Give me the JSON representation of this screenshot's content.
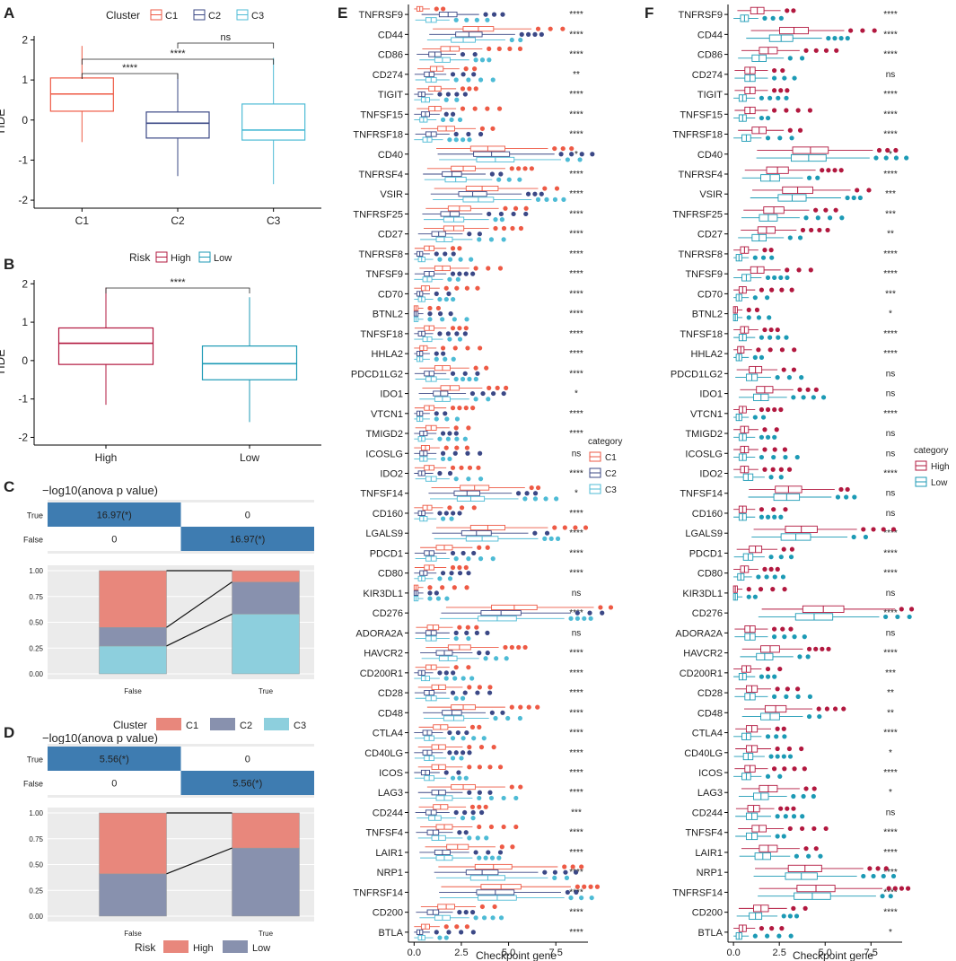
{
  "figure": {
    "panel_labels": [
      "A",
      "B",
      "C",
      "D",
      "E",
      "F"
    ],
    "legend_titles": {
      "cluster": "Cluster",
      "risk": "Risk",
      "category": "category"
    }
  },
  "colors": {
    "C1": "#EE5A45",
    "C2": "#3B4886",
    "C3": "#4DBBD5",
    "High": "#B2183F",
    "Low": "#1C9AB5",
    "C1_fill": "#E8877C",
    "C2_fill": "#8891AE",
    "C3_fill": "#8DCFDD",
    "High_fill": "#E8877C",
    "Low_fill": "#8891AE",
    "tile_blue": "#3E7CB1",
    "panel_bg": "#EBEBEB"
  },
  "chart_data": [
    {
      "id": "A",
      "type": "box",
      "title": "",
      "xlabel": "",
      "ylabel": "TIDE",
      "legend_title": "Cluster",
      "groups": [
        "C1",
        "C2",
        "C3"
      ],
      "ylim": [
        -2.2,
        2.1
      ],
      "yticks": [
        -2,
        -1,
        0,
        1,
        2
      ],
      "boxes": [
        {
          "group": "C1",
          "min": -0.55,
          "q1": 0.22,
          "median": 0.65,
          "q3": 1.05,
          "max": 1.85
        },
        {
          "group": "C2",
          "min": -1.4,
          "q1": -0.45,
          "median": -0.08,
          "q3": 0.2,
          "max": 1.15
        },
        {
          "group": "C3",
          "min": -1.6,
          "q1": -0.5,
          "median": -0.25,
          "q3": 0.4,
          "max": 1.55
        }
      ],
      "comparisons": [
        {
          "from": "C1",
          "to": "C2",
          "label": "****"
        },
        {
          "from": "C1",
          "to": "C3",
          "label": "****"
        },
        {
          "from": "C2",
          "to": "C3",
          "label": "ns"
        }
      ]
    },
    {
      "id": "B",
      "type": "box",
      "title": "",
      "xlabel": "",
      "ylabel": "TIDE",
      "legend_title": "Risk",
      "groups": [
        "High",
        "Low"
      ],
      "ylim": [
        -2.2,
        2.1
      ],
      "yticks": [
        -2,
        -1,
        0,
        1,
        2
      ],
      "boxes": [
        {
          "group": "High",
          "min": -1.15,
          "q1": -0.1,
          "median": 0.45,
          "q3": 0.85,
          "max": 1.9
        },
        {
          "group": "Low",
          "min": -1.6,
          "q1": -0.5,
          "median": -0.08,
          "q3": 0.38,
          "max": 1.65
        }
      ],
      "comparisons": [
        {
          "from": "High",
          "to": "Low",
          "label": "****"
        }
      ]
    },
    {
      "id": "C",
      "type": "stacked-bar",
      "title": "−log10(anova p value)",
      "tile_rows": [
        "True",
        "False"
      ],
      "tile_cols": [
        "",
        ""
      ],
      "tiles": [
        [
          "16.97(*)",
          "0"
        ],
        [
          "0",
          "16.97(*)"
        ]
      ],
      "categories": [
        "False",
        "True"
      ],
      "yticks": [
        "0.00",
        "0.25",
        "0.50",
        "0.75",
        "1.00"
      ],
      "legend_title": "Cluster",
      "series": [
        {
          "name": "C1",
          "values": [
            0.55,
            0.11
          ]
        },
        {
          "name": "C2",
          "values": [
            0.18,
            0.31
          ]
        },
        {
          "name": "C3",
          "values": [
            0.27,
            0.58
          ]
        }
      ]
    },
    {
      "id": "D",
      "type": "stacked-bar",
      "title": "−log10(anova p value)",
      "tile_rows": [
        "True",
        "False"
      ],
      "tiles": [
        [
          "5.56(*)",
          "0"
        ],
        [
          "0",
          "5.56(*)"
        ]
      ],
      "categories": [
        "False",
        "True"
      ],
      "yticks": [
        "0.00",
        "0.25",
        "0.50",
        "0.75",
        "1.00"
      ],
      "legend_title": "Risk",
      "series": [
        {
          "name": "High",
          "values": [
            0.59,
            0.34
          ]
        },
        {
          "name": "Low",
          "values": [
            0.41,
            0.66
          ]
        }
      ]
    },
    {
      "id": "E",
      "type": "box-horizontal",
      "xlabel": "Checkpoint gene",
      "ylabel": "",
      "xlim": [
        -0.3,
        9.2
      ],
      "xticks": [
        "0.0",
        "2.5",
        "5.0",
        "7.5"
      ],
      "legend_title": "category",
      "groups": [
        "C1",
        "C2",
        "C3"
      ],
      "genes": [
        {
          "gene": "TNFRSF9",
          "sig": "****",
          "c": [
            0.3,
            1.8,
            0.9
          ]
        },
        {
          "gene": "CD44",
          "sig": "****",
          "c": [
            3.4,
            2.9,
            2.6
          ]
        },
        {
          "gene": "CD86",
          "sig": "****",
          "c": [
            1.9,
            1.1,
            1.5
          ]
        },
        {
          "gene": "CD274",
          "sig": "**",
          "c": [
            1.2,
            0.8,
            0.9
          ]
        },
        {
          "gene": "TIGIT",
          "sig": "****",
          "c": [
            1.1,
            0.4,
            0.6
          ]
        },
        {
          "gene": "TNFSF15",
          "sig": "****",
          "c": [
            1.1,
            0.6,
            0.5
          ]
        },
        {
          "gene": "TNFRSF18",
          "sig": "****",
          "c": [
            1.7,
            0.9,
            0.7
          ]
        },
        {
          "gene": "CD40",
          "sig": "*",
          "c": [
            3.9,
            4.1,
            4.3
          ]
        },
        {
          "gene": "TNFRSF4",
          "sig": "****",
          "c": [
            2.6,
            2.0,
            2.2
          ]
        },
        {
          "gene": "VSIR",
          "sig": "****",
          "c": [
            3.6,
            3.1,
            3.4
          ]
        },
        {
          "gene": "TNFRSF25",
          "sig": "****",
          "c": [
            2.4,
            1.9,
            2.1
          ]
        },
        {
          "gene": "CD27",
          "sig": "****",
          "c": [
            2.1,
            1.3,
            1.6
          ]
        },
        {
          "gene": "TNFRSF8",
          "sig": "****",
          "c": [
            0.8,
            0.3,
            0.4
          ]
        },
        {
          "gene": "TNFSF9",
          "sig": "****",
          "c": [
            1.5,
            0.8,
            0.7
          ]
        },
        {
          "gene": "CD70",
          "sig": "****",
          "c": [
            0.6,
            0.3,
            0.4
          ]
        },
        {
          "gene": "BTNL2",
          "sig": "****",
          "c": [
            0.1,
            0.1,
            0.1
          ]
        },
        {
          "gene": "TNFSF18",
          "sig": "****",
          "c": [
            0.8,
            0.4,
            0.7
          ]
        },
        {
          "gene": "HHLA2",
          "sig": "****",
          "c": [
            0.5,
            0.3,
            0.3
          ]
        },
        {
          "gene": "PDCD1LG2",
          "sig": "****",
          "c": [
            1.5,
            0.8,
            0.9
          ]
        },
        {
          "gene": "IDO1",
          "sig": "*",
          "c": [
            1.9,
            1.4,
            1.5
          ]
        },
        {
          "gene": "VTCN1",
          "sig": "****",
          "c": [
            0.8,
            0.3,
            0.3
          ]
        },
        {
          "gene": "TMIGD2",
          "sig": "****",
          "c": [
            0.9,
            0.5,
            0.4
          ]
        },
        {
          "gene": "ICOSLG",
          "sig": "ns",
          "c": [
            0.6,
            0.5,
            0.5
          ]
        },
        {
          "gene": "IDO2",
          "sig": "****",
          "c": [
            0.8,
            0.4,
            0.9
          ]
        },
        {
          "gene": "TNFSF14",
          "sig": "*",
          "c": [
            3.2,
            2.8,
            3.0
          ]
        },
        {
          "gene": "CD160",
          "sig": "****",
          "c": [
            0.7,
            0.4,
            0.5
          ]
        },
        {
          "gene": "LGALS9",
          "sig": "****",
          "c": [
            3.9,
            3.3,
            3.6
          ]
        },
        {
          "gene": "PDCD1",
          "sig": "****",
          "c": [
            1.6,
            0.8,
            0.9
          ]
        },
        {
          "gene": "CD80",
          "sig": "****",
          "c": [
            0.8,
            0.5,
            0.4
          ]
        },
        {
          "gene": "KIR3DL1",
          "sig": "ns",
          "c": [
            0.1,
            0.1,
            0.1
          ]
        },
        {
          "gene": "CD276",
          "sig": "****",
          "c": [
            5.3,
            4.6,
            4.4
          ]
        },
        {
          "gene": "ADORA2A",
          "sig": "ns",
          "c": [
            1.0,
            0.9,
            0.9
          ]
        },
        {
          "gene": "HAVCR2",
          "sig": "****",
          "c": [
            2.4,
            1.6,
            1.8
          ]
        },
        {
          "gene": "CD200R1",
          "sig": "****",
          "c": [
            0.9,
            0.4,
            0.6
          ]
        },
        {
          "gene": "CD28",
          "sig": "****",
          "c": [
            1.3,
            0.8,
            0.9
          ]
        },
        {
          "gene": "CD48",
          "sig": "****",
          "c": [
            2.6,
            2.0,
            2.1
          ]
        },
        {
          "gene": "CTLA4",
          "sig": "****",
          "c": [
            1.4,
            0.7,
            0.8
          ]
        },
        {
          "gene": "CD40LG",
          "sig": "****",
          "c": [
            1.3,
            0.7,
            0.8
          ]
        },
        {
          "gene": "ICOS",
          "sig": "****",
          "c": [
            1.3,
            0.6,
            0.8
          ]
        },
        {
          "gene": "LAG3",
          "sig": "****",
          "c": [
            2.6,
            1.3,
            1.6
          ]
        },
        {
          "gene": "CD244",
          "sig": "***",
          "c": [
            1.4,
            0.9,
            1.1
          ]
        },
        {
          "gene": "TNFSF4",
          "sig": "****",
          "c": [
            1.6,
            1.0,
            1.3
          ]
        },
        {
          "gene": "LAIR1",
          "sig": "****",
          "c": [
            2.3,
            1.5,
            1.6
          ]
        },
        {
          "gene": "NRP1",
          "sig": "****",
          "c": [
            4.2,
            3.6,
            3.9
          ]
        },
        {
          "gene": "TNFRSF14",
          "sig": "****",
          "c": [
            4.6,
            4.3,
            4.4
          ]
        },
        {
          "gene": "CD200",
          "sig": "****",
          "c": [
            1.7,
            1.0,
            1.5
          ]
        },
        {
          "gene": "BTLA",
          "sig": "****",
          "c": [
            0.6,
            0.3,
            0.4
          ]
        }
      ]
    },
    {
      "id": "F",
      "type": "box-horizontal",
      "xlabel": "Checkpoint gene",
      "ylabel": "",
      "xlim": [
        -0.3,
        9.2
      ],
      "xticks": [
        "0.0",
        "2.5",
        "5.0",
        "7.5"
      ],
      "legend_title": "category",
      "groups": [
        "High",
        "Low"
      ],
      "genes": [
        {
          "gene": "TNFRSF9",
          "sig": "****",
          "c": [
            1.3,
            0.6
          ]
        },
        {
          "gene": "CD44",
          "sig": "****",
          "c": [
            3.3,
            2.6
          ]
        },
        {
          "gene": "CD86",
          "sig": "****",
          "c": [
            1.9,
            1.4
          ]
        },
        {
          "gene": "CD274",
          "sig": "ns",
          "c": [
            0.9,
            0.9
          ]
        },
        {
          "gene": "TIGIT",
          "sig": "****",
          "c": [
            0.9,
            0.5
          ]
        },
        {
          "gene": "TNFSF15",
          "sig": "****",
          "c": [
            0.9,
            0.5
          ]
        },
        {
          "gene": "TNFRSF18",
          "sig": "****",
          "c": [
            1.4,
            0.7
          ]
        },
        {
          "gene": "CD40",
          "sig": "*",
          "c": [
            4.2,
            4.1
          ]
        },
        {
          "gene": "TNFRSF4",
          "sig": "****",
          "c": [
            2.4,
            2.0
          ]
        },
        {
          "gene": "VSIR",
          "sig": "***",
          "c": [
            3.5,
            3.2
          ]
        },
        {
          "gene": "TNFRSF25",
          "sig": "***",
          "c": [
            2.2,
            1.9
          ]
        },
        {
          "gene": "CD27",
          "sig": "**",
          "c": [
            1.8,
            1.4
          ]
        },
        {
          "gene": "TNFRSF8",
          "sig": "****",
          "c": [
            0.6,
            0.3
          ]
        },
        {
          "gene": "TNFSF9",
          "sig": "****",
          "c": [
            1.3,
            0.7
          ]
        },
        {
          "gene": "CD70",
          "sig": "***",
          "c": [
            0.5,
            0.3
          ]
        },
        {
          "gene": "BTNL2",
          "sig": "*",
          "c": [
            0.1,
            0.1
          ]
        },
        {
          "gene": "TNFSF18",
          "sig": "****",
          "c": [
            0.6,
            0.5
          ]
        },
        {
          "gene": "HHLA2",
          "sig": "****",
          "c": [
            0.4,
            0.3
          ]
        },
        {
          "gene": "PDCD1LG2",
          "sig": "ns",
          "c": [
            1.2,
            1.0
          ]
        },
        {
          "gene": "IDO1",
          "sig": "ns",
          "c": [
            1.7,
            1.5
          ]
        },
        {
          "gene": "VTCN1",
          "sig": "****",
          "c": [
            0.5,
            0.3
          ]
        },
        {
          "gene": "TMIGD2",
          "sig": "ns",
          "c": [
            0.6,
            0.5
          ]
        },
        {
          "gene": "ICOSLG",
          "sig": "ns",
          "c": [
            0.6,
            0.5
          ]
        },
        {
          "gene": "IDO2",
          "sig": "****",
          "c": [
            0.6,
            0.8
          ]
        },
        {
          "gene": "TNFSF14",
          "sig": "ns",
          "c": [
            3.0,
            2.9
          ]
        },
        {
          "gene": "CD160",
          "sig": "ns",
          "c": [
            0.5,
            0.5
          ]
        },
        {
          "gene": "LGALS9",
          "sig": "****",
          "c": [
            3.7,
            3.4
          ]
        },
        {
          "gene": "PDCD1",
          "sig": "****",
          "c": [
            1.2,
            0.8
          ]
        },
        {
          "gene": "CD80",
          "sig": "****",
          "c": [
            0.6,
            0.4
          ]
        },
        {
          "gene": "KIR3DL1",
          "sig": "ns",
          "c": [
            0.1,
            0.1
          ]
        },
        {
          "gene": "CD276",
          "sig": "****",
          "c": [
            4.9,
            4.4
          ]
        },
        {
          "gene": "ADORA2A",
          "sig": "ns",
          "c": [
            0.9,
            0.9
          ]
        },
        {
          "gene": "HAVCR2",
          "sig": "****",
          "c": [
            2.0,
            1.7
          ]
        },
        {
          "gene": "CD200R1",
          "sig": "***",
          "c": [
            0.7,
            0.5
          ]
        },
        {
          "gene": "CD28",
          "sig": "**",
          "c": [
            1.0,
            0.9
          ]
        },
        {
          "gene": "CD48",
          "sig": "**",
          "c": [
            2.3,
            2.0
          ]
        },
        {
          "gene": "CTLA4",
          "sig": "****",
          "c": [
            1.0,
            0.7
          ]
        },
        {
          "gene": "CD40LG",
          "sig": "*",
          "c": [
            1.0,
            0.8
          ]
        },
        {
          "gene": "ICOS",
          "sig": "****",
          "c": [
            0.9,
            0.7
          ]
        },
        {
          "gene": "LAG3",
          "sig": "*",
          "c": [
            1.9,
            1.5
          ]
        },
        {
          "gene": "CD244",
          "sig": "ns",
          "c": [
            1.1,
            1.0
          ]
        },
        {
          "gene": "TNFSF4",
          "sig": "****",
          "c": [
            1.4,
            1.0
          ]
        },
        {
          "gene": "LAIR1",
          "sig": "****",
          "c": [
            1.9,
            1.6
          ]
        },
        {
          "gene": "NRP1",
          "sig": "****",
          "c": [
            3.9,
            3.7
          ]
        },
        {
          "gene": "TNFRSF14",
          "sig": "****",
          "c": [
            4.5,
            4.3
          ]
        },
        {
          "gene": "CD200",
          "sig": "****",
          "c": [
            1.5,
            1.2
          ]
        },
        {
          "gene": "BTLA",
          "sig": "*",
          "c": [
            0.5,
            0.3
          ]
        }
      ]
    }
  ]
}
